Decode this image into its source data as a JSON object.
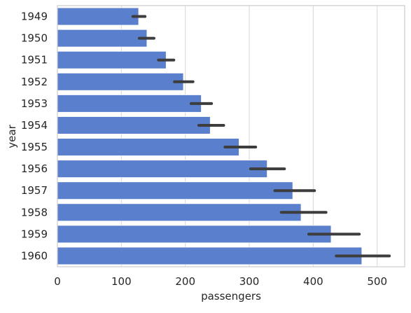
{
  "chart_data": {
    "type": "bar",
    "orientation": "horizontal",
    "xlabel": "passengers",
    "ylabel": "year",
    "xlim": [
      0,
      543
    ],
    "xticks": [
      0,
      100,
      200,
      300,
      400,
      500
    ],
    "grid": "vertical",
    "legend": "none",
    "colors": {
      "bar": "#5a7fcc",
      "error_bar": "#3d3d3d",
      "grid": "#d6d6d6",
      "frame": "#cccccc"
    },
    "categories": [
      "1949",
      "1950",
      "1951",
      "1952",
      "1953",
      "1954",
      "1955",
      "1956",
      "1957",
      "1958",
      "1959",
      "1960"
    ],
    "values": [
      127,
      140,
      170,
      197,
      225,
      239,
      284,
      328,
      368,
      381,
      428,
      476
    ],
    "error_low": [
      118,
      128,
      158,
      183,
      209,
      221,
      262,
      302,
      340,
      350,
      393,
      436
    ],
    "error_high": [
      137,
      151,
      182,
      212,
      241,
      260,
      310,
      355,
      402,
      420,
      472,
      519
    ]
  }
}
